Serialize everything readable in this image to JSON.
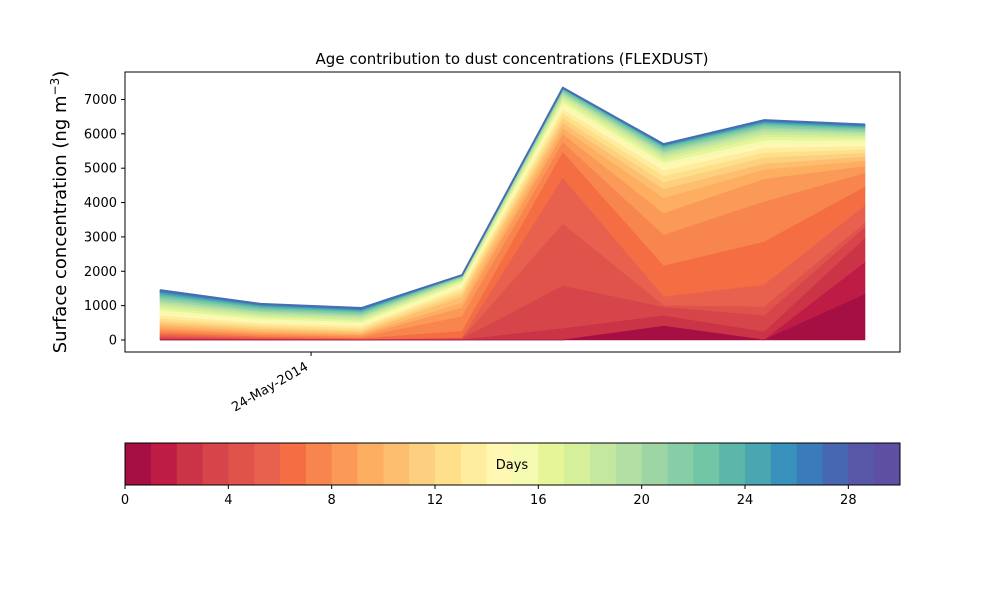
{
  "chart_data": {
    "type": "area",
    "title": "Age contribution to dust concentrations (FLEXDUST)",
    "ylabel_main": "Surface concentration (ng m",
    "ylabel_sup": "−3",
    "ylabel_close": ")",
    "xlabel": "",
    "x_tick_label": "24-May-2014",
    "y_ticks": [
      0,
      1000,
      2000,
      3000,
      4000,
      5000,
      6000,
      7000
    ],
    "ylim": [
      -350,
      7800
    ],
    "n_points": 8,
    "x_tick_index": 1.5,
    "age_unit": "Days",
    "age_bins": 30,
    "total": [
      1450,
      1050,
      930,
      1890,
      7340,
      5700,
      6400,
      6270
    ],
    "cumulative": [
      [
        0,
        0,
        0,
        0,
        0,
        400,
        0,
        1330
      ],
      [
        0,
        0,
        0,
        0,
        0,
        400,
        0,
        2250
      ],
      [
        30,
        0,
        0,
        0,
        330,
        700,
        230,
        2950
      ],
      [
        60,
        15,
        0,
        30,
        1570,
        950,
        700,
        3270
      ],
      [
        100,
        35,
        5,
        40,
        3370,
        1000,
        960,
        3400
      ],
      [
        140,
        55,
        15,
        60,
        4700,
        1250,
        1600,
        3900
      ],
      [
        190,
        90,
        40,
        250,
        5450,
        2150,
        2850,
        4450
      ],
      [
        260,
        140,
        80,
        680,
        5740,
        3050,
        4020,
        4850
      ],
      [
        330,
        190,
        130,
        930,
        5980,
        3680,
        4680,
        5050
      ],
      [
        400,
        240,
        170,
        1070,
        6150,
        4120,
        4950,
        5200
      ],
      [
        470,
        300,
        220,
        1250,
        6300,
        4380,
        5120,
        5320
      ],
      [
        540,
        360,
        270,
        1350,
        6440,
        4580,
        5300,
        5430
      ],
      [
        620,
        420,
        330,
        1440,
        6580,
        4760,
        5440,
        5530
      ],
      [
        700,
        480,
        390,
        1520,
        6700,
        4920,
        5580,
        5630
      ],
      [
        780,
        540,
        450,
        1590,
        6800,
        5050,
        5700,
        5720
      ],
      [
        860,
        600,
        510,
        1650,
        6900,
        5150,
        5800,
        5800
      ],
      [
        930,
        660,
        560,
        1700,
        6980,
        5240,
        5900,
        5870
      ],
      [
        1000,
        710,
        610,
        1740,
        7050,
        5320,
        5980,
        5930
      ],
      [
        1060,
        760,
        660,
        1770,
        7110,
        5390,
        6060,
        5990
      ],
      [
        1120,
        810,
        700,
        1800,
        7160,
        5450,
        6130,
        6040
      ],
      [
        1180,
        850,
        740,
        1820,
        7200,
        5500,
        6180,
        6080
      ],
      [
        1230,
        890,
        780,
        1840,
        7240,
        5550,
        6230,
        6120
      ],
      [
        1280,
        930,
        810,
        1855,
        7270,
        5590,
        6270,
        6150
      ],
      [
        1320,
        960,
        840,
        1865,
        7290,
        5620,
        6300,
        6180
      ],
      [
        1360,
        990,
        860,
        1872,
        7305,
        5645,
        6330,
        6205
      ],
      [
        1390,
        1010,
        880,
        1878,
        7318,
        5665,
        6355,
        6225
      ],
      [
        1415,
        1025,
        900,
        1883,
        7328,
        5680,
        6375,
        6240
      ],
      [
        1432,
        1037,
        915,
        1886,
        7334,
        5690,
        6388,
        6255
      ],
      [
        1445,
        1045,
        925,
        1888,
        7338,
        5697,
        6396,
        6265
      ],
      [
        1450,
        1050,
        930,
        1890,
        7340,
        5700,
        6400,
        6270
      ]
    ],
    "colorbar": {
      "label": "Days",
      "range": [
        0,
        30
      ],
      "ticks": [
        0,
        4,
        8,
        12,
        16,
        20,
        24,
        28
      ],
      "colors": [
        "#a50f43",
        "#be1b45",
        "#cb3346",
        "#d6454a",
        "#e0534b",
        "#e8614f",
        "#f46d43",
        "#f8854d",
        "#fb9a58",
        "#fdae61",
        "#fdbe6f",
        "#fdd07f",
        "#fee08b",
        "#feec9f",
        "#fff7b2",
        "#f4fab0",
        "#e6f598",
        "#d6ef9b",
        "#c4e89f",
        "#b2e0a2",
        "#9ed5a4",
        "#86cea5",
        "#72c5a5",
        "#5cb7aa",
        "#4aa6b0",
        "#3891bb",
        "#3a7cb9",
        "#4767b1",
        "#5856a7",
        "#5e4fa2"
      ]
    }
  }
}
